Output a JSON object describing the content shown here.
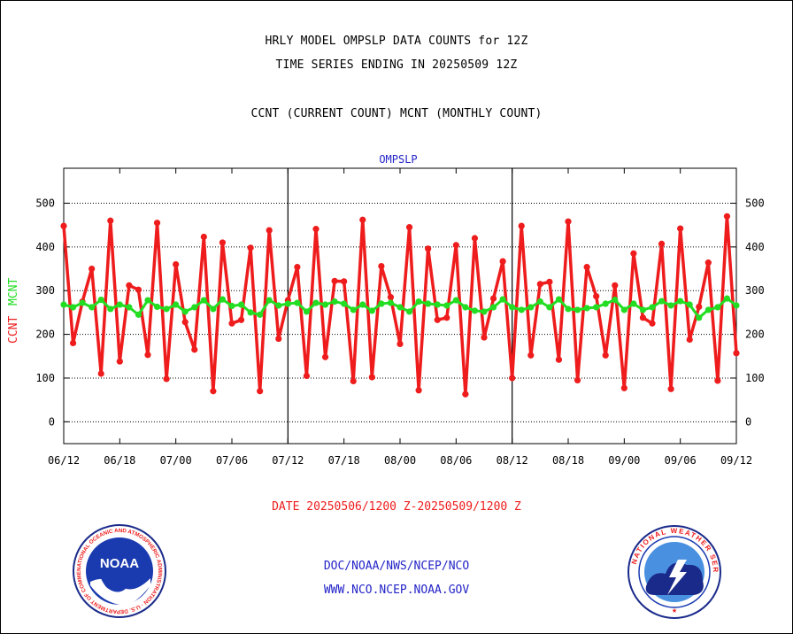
{
  "header": {
    "line1": "HRLY MODEL OMPSLP DATA COUNTS for 12Z",
    "line2": "TIME SERIES ENDING IN 20250509 12Z",
    "line3": "CCNT (CURRENT COUNT) MCNT (MONTHLY COUNT)"
  },
  "footer": {
    "date_range": "DATE 20250506/1200 Z-20250509/1200 Z",
    "org": "DOC/NOAA/NWS/NCEP/NCO",
    "url": "WWW.NCO.NCEP.NOAA.GOV"
  },
  "logos": {
    "noaa": "NOAA",
    "noaa_ring": "NATIONAL OCEANIC AND ATMOSPHERIC ADMINISTRATION · U.S. DEPARTMENT OF COMMERCE",
    "nws_ring": "NATIONAL WEATHER SERVICE"
  },
  "colors": {
    "ccnt": "#ee1c1c",
    "mcnt": "#22dd22",
    "title_blue": "#2323c8",
    "axis": "#000000"
  },
  "chart_data": {
    "type": "line",
    "title": "OMPSLP",
    "ylabel_series1": "CCNT",
    "ylabel_series2": "MCNT",
    "ylim": [
      -50,
      580
    ],
    "yticks": [
      0,
      100,
      200,
      300,
      400,
      500
    ],
    "x_tick_labels": [
      "06/12",
      "06/18",
      "07/00",
      "07/06",
      "07/12",
      "07/18",
      "08/00",
      "08/06",
      "08/12",
      "08/18",
      "09/00",
      "09/06",
      "09/12"
    ],
    "grid": true,
    "series": [
      {
        "name": "CCNT",
        "color": "#ee1c1c",
        "values": [
          448,
          180,
          275,
          350,
          110,
          460,
          138,
          312,
          302,
          153,
          455,
          98,
          360,
          228,
          165,
          423,
          70,
          410,
          225,
          233,
          398,
          70,
          438,
          190,
          278,
          354,
          105,
          441,
          148,
          322,
          321,
          93,
          462,
          102,
          356,
          285,
          178,
          445,
          72,
          396,
          233,
          238,
          404,
          63,
          420,
          193,
          282,
          367,
          100,
          448,
          152,
          315,
          320,
          142,
          458,
          95,
          354,
          287,
          152,
          312,
          77,
          385,
          238,
          225,
          407,
          75,
          442,
          188,
          263,
          364,
          94,
          470,
          157
        ]
      },
      {
        "name": "MCNT",
        "color": "#22dd22",
        "values": [
          268,
          262,
          272,
          262,
          279,
          258,
          268,
          262,
          245,
          278,
          263,
          258,
          268,
          252,
          262,
          278,
          258,
          280,
          265,
          268,
          250,
          245,
          278,
          266,
          270,
          272,
          252,
          272,
          268,
          275,
          270,
          256,
          268,
          254,
          270,
          272,
          262,
          252,
          275,
          270,
          268,
          266,
          278,
          262,
          254,
          252,
          262,
          280,
          262,
          256,
          262,
          275,
          262,
          280,
          258,
          256,
          260,
          262,
          270,
          279,
          256,
          270,
          256,
          262,
          276,
          266,
          276,
          268,
          238,
          256,
          262,
          282,
          266
        ]
      }
    ]
  }
}
